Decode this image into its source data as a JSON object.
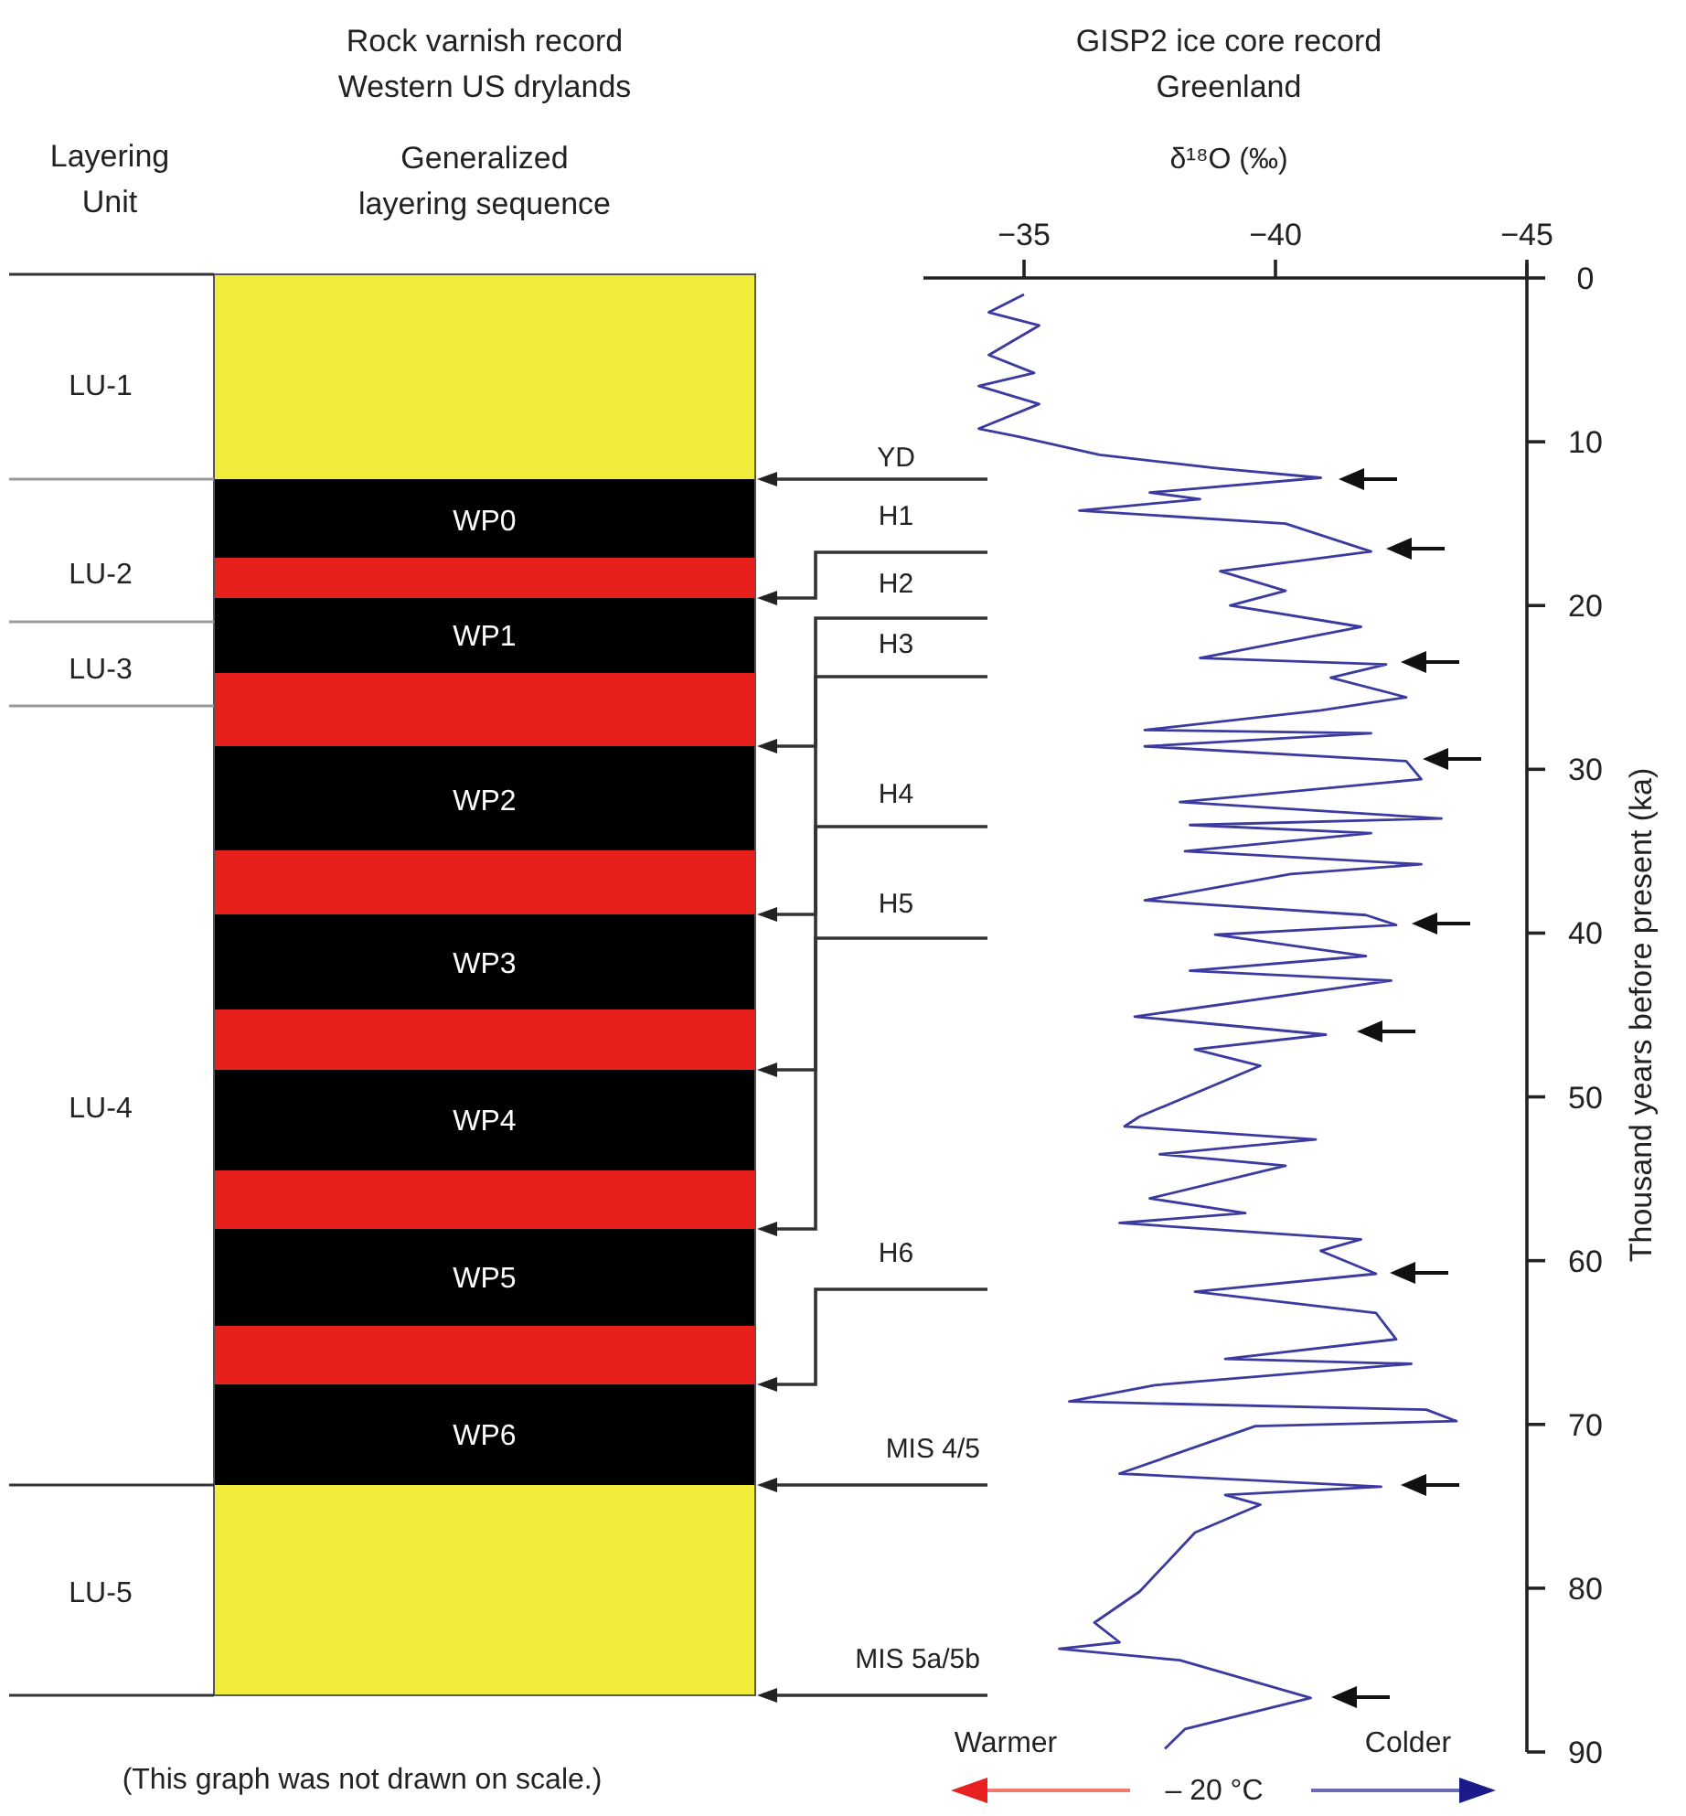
{
  "chart_data": [
    {
      "type": "other",
      "title": "Rock varnish record\nWestern US drylands",
      "subtitle": "Generalized\nlayering sequence",
      "annotations": [
        "Layering\nUnit",
        "LU-1",
        "LU-2",
        "LU-3",
        "LU-4",
        "LU-5",
        "WP0",
        "WP1",
        "WP2",
        "WP3",
        "WP4",
        "WP5",
        "WP6",
        "YD",
        "H1",
        "H2",
        "H3",
        "H4",
        "H5",
        "H6",
        "MIS 4/5",
        "MIS 5a/5b",
        "(This graph was not drawn on scale.)"
      ]
    },
    {
      "type": "line",
      "title": "GISP2 ice core record\nGreenland",
      "xlabel": "δ¹⁸O (‰)",
      "ylabel": "Thousand years before present (ka)",
      "xlim": [
        -33,
        -45
      ],
      "xticks": [
        -35,
        -40,
        -45
      ],
      "ylim": [
        90,
        0
      ],
      "yticks": [
        0,
        10,
        20,
        30,
        40,
        50,
        60,
        70,
        80,
        90
      ],
      "grid": false,
      "marker": "none",
      "line_style": "solid",
      "annotations": [
        "Warmer",
        "– 20 °C",
        "Colder"
      ],
      "series": [
        {
          "color": "#3a3aa0",
          "x": [
            -35,
            -34.3,
            -35.3,
            -34.3,
            -35.2,
            -34.1,
            -35.3,
            -34.1,
            -34.9,
            -36.5,
            -38.8,
            -40.9,
            -37.5,
            -38.5,
            -36.1,
            -40.2,
            -41.9,
            -38.9,
            -40.2,
            -39.1,
            -41.7,
            -38.5,
            -42.2,
            -41.1,
            -42.6,
            -40.9,
            -37.4,
            -41.9,
            -37.4,
            -42.6,
            -42.9,
            -38.1,
            -43.3,
            -38.3,
            -41.9,
            -38.2,
            -42.9,
            -40.3,
            -37.4,
            -41.8,
            -42.4,
            -38.8,
            -41.8,
            -38.3,
            -42.3,
            -37.2,
            -41,
            -38.4,
            -39.7,
            -37.3,
            -37,
            -40.8,
            -37.7,
            -40.2,
            -37.5,
            -39.4,
            -36.9,
            -41.7,
            -40.9,
            -42,
            -38.4,
            -42,
            -42.4,
            -39,
            -42.7,
            -37.6,
            -35.9,
            -43,
            -43.6,
            -39.6,
            -36.9,
            -42.1,
            -39,
            -39.7,
            -38.4,
            -37.3,
            -36.4,
            -36.9,
            -35.7,
            -38.1,
            -40.7,
            -38.2,
            -37.8
          ],
          "values": [
            1,
            2.1,
            2.9,
            4.7,
            5.8,
            6.6,
            7.7,
            9.2,
            9.7,
            10.8,
            11.6,
            12.2,
            13.1,
            13.5,
            14.2,
            15,
            16.7,
            17.9,
            19.1,
            20,
            21.3,
            23.2,
            23.6,
            24.4,
            25.6,
            26.4,
            27.6,
            27.8,
            28.6,
            29.5,
            30.6,
            32,
            33,
            33.4,
            33.9,
            35,
            35.8,
            36.4,
            38,
            38.9,
            39.5,
            40.1,
            41.4,
            42.3,
            42.9,
            45.1,
            46.2,
            47.1,
            48.1,
            51.2,
            51.8,
            52.6,
            53.5,
            54.2,
            56.2,
            57.1,
            57.7,
            58.7,
            59.4,
            60.8,
            61.9,
            63.2,
            64.8,
            66,
            66.3,
            67.6,
            68.6,
            69.1,
            69.8,
            70.1,
            73,
            73.8,
            74.3,
            74.9,
            76.6,
            80.2,
            82.1,
            83.3,
            83.7,
            84.4,
            86.7,
            88.6,
            89.8
          ]
        }
      ]
    }
  ]
}
